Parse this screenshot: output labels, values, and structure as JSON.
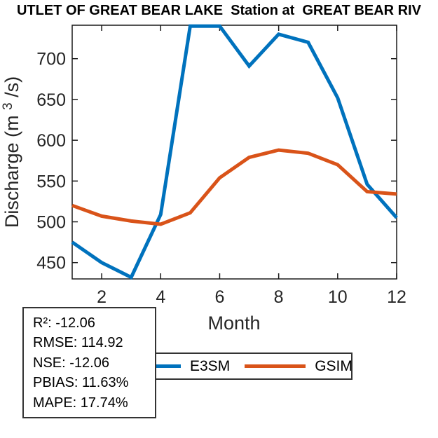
{
  "title": "UTLET OF GREAT BEAR LAKE  Station at  GREAT BEAR RIV",
  "chart_data": {
    "type": "line",
    "title": "UTLET OF GREAT BEAR LAKE  Station at  GREAT BEAR RIV",
    "xlabel": "Month",
    "ylabel": "Discharge (m3/s)",
    "ylabel_parts": {
      "prefix": "Discharge (m",
      "sup": "3",
      "suffix": "/s)"
    },
    "x": [
      1,
      2,
      3,
      4,
      5,
      6,
      7,
      8,
      9,
      10,
      11,
      12
    ],
    "xticks": [
      2,
      4,
      6,
      8,
      10,
      12
    ],
    "yticks": [
      450,
      500,
      550,
      600,
      650,
      700
    ],
    "xlim": [
      1,
      12
    ],
    "ylim": [
      430,
      741
    ],
    "grid": false,
    "legend_position": "bottom-outside",
    "series": [
      {
        "name": "E3SM",
        "color": "#0072BD",
        "values": [
          475,
          450,
          432,
          509,
          740,
          740,
          691,
          730,
          720,
          652,
          546,
          505
        ]
      },
      {
        "name": "GSIM",
        "color": "#D95319",
        "values": [
          520,
          507,
          501,
          497,
          511,
          554,
          579,
          588,
          584,
          570,
          537,
          534
        ]
      }
    ]
  },
  "stats_box": {
    "lines": [
      "R²: -12.06",
      "RMSE: 114.92",
      "NSE: -12.06",
      "PBIAS: 11.63%",
      "MAPE: 17.74%"
    ]
  },
  "colors": {
    "axis": "#1a1a1a",
    "box_border": "#333333",
    "text": "#262626"
  }
}
